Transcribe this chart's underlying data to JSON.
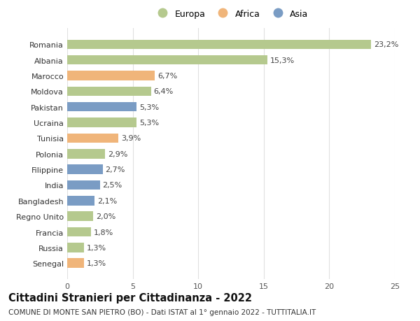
{
  "countries": [
    "Romania",
    "Albania",
    "Marocco",
    "Moldova",
    "Pakistan",
    "Ucraina",
    "Tunisia",
    "Polonia",
    "Filippine",
    "India",
    "Bangladesh",
    "Regno Unito",
    "Francia",
    "Russia",
    "Senegal"
  ],
  "values": [
    23.2,
    15.3,
    6.7,
    6.4,
    5.3,
    5.3,
    3.9,
    2.9,
    2.7,
    2.5,
    2.1,
    2.0,
    1.8,
    1.3,
    1.3
  ],
  "continents": [
    "Europa",
    "Europa",
    "Africa",
    "Europa",
    "Asia",
    "Europa",
    "Africa",
    "Europa",
    "Asia",
    "Asia",
    "Asia",
    "Europa",
    "Europa",
    "Europa",
    "Africa"
  ],
  "colors": {
    "Europa": "#b5c98e",
    "Africa": "#f0b57a",
    "Asia": "#7a9cc4"
  },
  "legend_order": [
    "Europa",
    "Africa",
    "Asia"
  ],
  "title": "Cittadini Stranieri per Cittadinanza - 2022",
  "subtitle": "COMUNE DI MONTE SAN PIETRO (BO) - Dati ISTAT al 1° gennaio 2022 - TUTTITALIA.IT",
  "xlim": [
    0,
    25
  ],
  "xticks": [
    0,
    5,
    10,
    15,
    20,
    25
  ],
  "background_color": "#ffffff",
  "grid_color": "#e0e0e0",
  "bar_height": 0.6,
  "label_fontsize": 8,
  "tick_fontsize": 8,
  "title_fontsize": 10.5,
  "subtitle_fontsize": 7.5
}
